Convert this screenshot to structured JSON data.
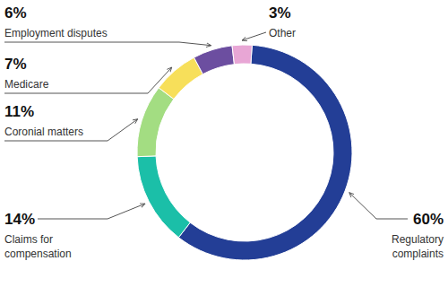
{
  "chart_data": {
    "type": "donut",
    "categories": [
      "Regulatory complaints",
      "Claims for compensation",
      "Coronial matters",
      "Medicare",
      "Employment disputes",
      "Other"
    ],
    "values": [
      60,
      14,
      11,
      7,
      6,
      3
    ],
    "value_labels": [
      "60%",
      "14%",
      "11%",
      "7%",
      "6%",
      "3%"
    ],
    "colors": [
      "#233e96",
      "#1bbfa8",
      "#a3dd82",
      "#f7df5a",
      "#6c4ea0",
      "#e8a6d5"
    ],
    "data_labels": true
  }
}
